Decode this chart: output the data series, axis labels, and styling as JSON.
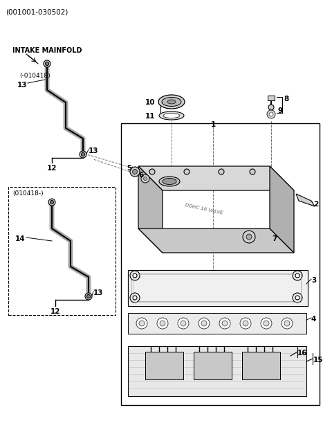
{
  "bg_color": "#ffffff",
  "lc": "#000000",
  "gc": "#777777",
  "title": "(001001-030502)",
  "intake_label": "INTAKE MAINFOLD",
  "box1_label": "(-010418)",
  "box2_label": "(010418-)"
}
